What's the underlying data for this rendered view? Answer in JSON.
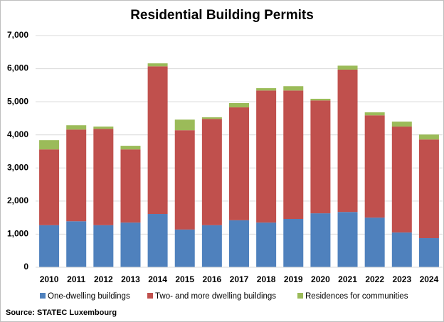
{
  "chart_data": {
    "type": "stacked-bar",
    "title": "Residential Building Permits",
    "categories": [
      "2010",
      "2011",
      "2012",
      "2013",
      "2014",
      "2015",
      "2016",
      "2017",
      "2018",
      "2019",
      "2020",
      "2021",
      "2022",
      "2023",
      "2024"
    ],
    "series": [
      {
        "name": "One-dwelling buildings",
        "color": "#4f81bd",
        "values": [
          1270,
          1390,
          1270,
          1350,
          1610,
          1140,
          1270,
          1420,
          1350,
          1460,
          1630,
          1670,
          1500,
          1050,
          880
        ]
      },
      {
        "name": "Two- and more dwelling buildings",
        "color": "#c0504d",
        "values": [
          2290,
          2770,
          2910,
          2210,
          4460,
          3000,
          3210,
          3410,
          3990,
          3880,
          3410,
          4300,
          3090,
          3200,
          2980
        ]
      },
      {
        "name": "Residences for communities",
        "color": "#9bbb59",
        "values": [
          280,
          130,
          70,
          110,
          90,
          320,
          50,
          130,
          70,
          130,
          50,
          120,
          90,
          150,
          150
        ]
      }
    ],
    "ylim": [
      0,
      7000
    ],
    "yticks": [
      0,
      {
        "value": 1000,
        "label": "1,000"
      },
      {
        "value": 2000,
        "label": "2,000"
      },
      {
        "value": 3000,
        "label": "3,000"
      },
      {
        "value": 4000,
        "label": "4,000"
      },
      {
        "value": 5000,
        "label": "5,000"
      },
      {
        "value": 6000,
        "label": "6,000"
      },
      {
        "value": 7000,
        "label": "7,000"
      }
    ],
    "grid": true,
    "legend": "bottom",
    "source": "Source: STATEC Luxembourg"
  }
}
